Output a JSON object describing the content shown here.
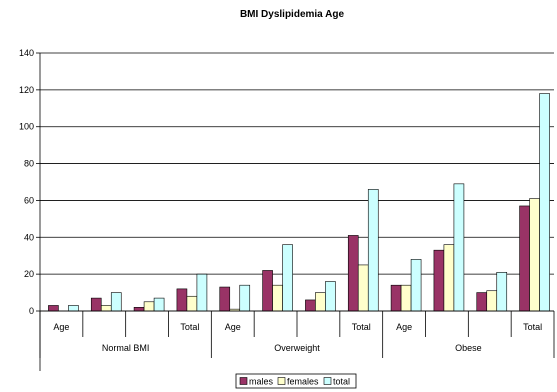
{
  "chart_data": {
    "type": "bar",
    "title": "BMI Dyslipidemia Age",
    "xlabel": "",
    "ylabel": "",
    "ylim": [
      0,
      140
    ],
    "yticks": [
      0,
      20,
      40,
      60,
      80,
      100,
      120,
      140
    ],
    "grid": true,
    "legend_position": "bottom",
    "groups": [
      {
        "label": "Normal BMI",
        "subcategories": [
          "Age",
          "",
          "",
          "Total"
        ]
      },
      {
        "label": "Overweight",
        "subcategories": [
          "Age",
          "",
          "",
          "Total"
        ]
      },
      {
        "label": "Obese",
        "subcategories": [
          "Age",
          "",
          "",
          "Total"
        ]
      }
    ],
    "series": [
      {
        "name": "males",
        "color": "#993366",
        "values": [
          3,
          7,
          2,
          12,
          13,
          22,
          6,
          41,
          14,
          33,
          10,
          57
        ]
      },
      {
        "name": "females",
        "color": "#FFFFCC",
        "values": [
          0,
          3,
          5,
          8,
          1,
          14,
          10,
          25,
          14,
          36,
          11,
          61
        ]
      },
      {
        "name": "total",
        "color": "#CCFFFF",
        "values": [
          3,
          10,
          7,
          20,
          14,
          36,
          16,
          66,
          28,
          69,
          21,
          118
        ]
      }
    ]
  }
}
